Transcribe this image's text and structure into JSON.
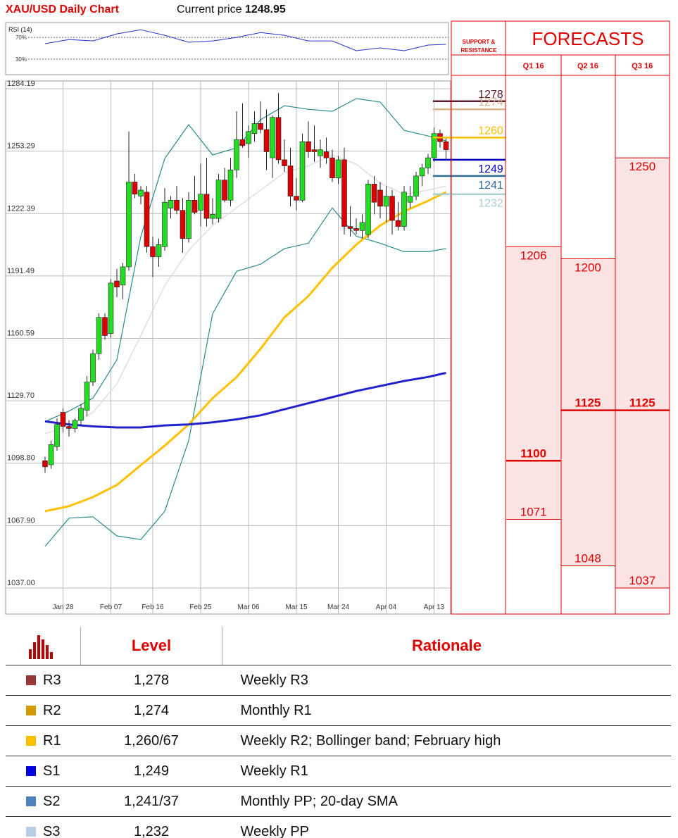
{
  "header": {
    "title": "XAU/USD Daily Chart",
    "price_label": "Current price",
    "price": 1248.95
  },
  "chart_data": [
    {
      "type": "line",
      "title": "RSI (14)",
      "x": [
        0,
        4,
        8,
        12,
        16,
        20,
        24,
        28,
        32,
        36,
        40,
        44,
        48,
        52,
        56,
        60,
        64,
        67
      ],
      "series": [
        {
          "color": "#2233cc",
          "values": [
            58.4,
            66.1,
            63.5,
            76.5,
            84.2,
            73.9,
            61,
            63.5,
            70,
            79,
            73.9,
            63.5,
            63.5,
            45.5,
            50.6,
            45.5,
            55.8,
            57.1
          ]
        }
      ],
      "ylim": [
        0,
        100
      ],
      "yticks": [
        {
          "value": 30,
          "label": "30%"
        },
        {
          "value": 70,
          "label": "70%"
        }
      ]
    },
    {
      "type": "candlestick",
      "up_color": "#22dd22",
      "down_color": "#dd0000",
      "categories": [
        null,
        null,
        null,
        "Jan 28",
        null,
        null,
        null,
        null,
        null,
        null,
        null,
        "Feb 07",
        null,
        null,
        null,
        null,
        null,
        null,
        "Feb 16",
        null,
        null,
        null,
        null,
        null,
        null,
        null,
        "Feb 25",
        null,
        null,
        null,
        null,
        null,
        null,
        null,
        "Mar 06",
        null,
        null,
        null,
        null,
        null,
        null,
        null,
        "Mar 15",
        null,
        null,
        null,
        null,
        null,
        null,
        "Mar 24",
        null,
        null,
        null,
        null,
        null,
        null,
        null,
        "Apr 04",
        null,
        null,
        null,
        null,
        null,
        null,
        null,
        "Apr 13",
        null,
        null
      ],
      "open": [
        1100,
        1098,
        1107,
        1124,
        1117,
        1116,
        1120,
        1125,
        1139,
        1153,
        1171,
        1163,
        1189,
        1187,
        1196,
        1238,
        1231,
        1233,
        1206,
        1201,
        1206,
        1225,
        1229,
        1224,
        1210,
        1229,
        1224,
        1232,
        1220,
        1220,
        1239,
        1229,
        1244,
        1259,
        1257,
        1262,
        1267,
        1264,
        1250,
        1270,
        1249,
        1246,
        1231,
        1229,
        1258,
        1254,
        1251,
        1253,
        1250,
        1240,
        1249,
        1216,
        1215,
        1214,
        1212,
        1237,
        1234,
        1226,
        1231,
        1219,
        1216,
        1228,
        1231,
        1241,
        1245,
        1250,
        1262,
        1258
      ],
      "high": [
        1102,
        1110,
        1121,
        1126,
        1120,
        1121,
        1128,
        1142,
        1155,
        1173,
        1173,
        1190,
        1195,
        1198,
        1263,
        1242,
        1236,
        1236,
        1211,
        1210,
        1235,
        1231,
        1236,
        1230,
        1233,
        1241,
        1247,
        1250,
        1230,
        1242,
        1245,
        1250,
        1273,
        1277,
        1266,
        1273,
        1278,
        1274,
        1271,
        1282,
        1259,
        1255,
        1240,
        1262,
        1268,
        1266,
        1259,
        1260,
        1254,
        1251,
        1255,
        1226,
        1220,
        1222,
        1239,
        1241,
        1238,
        1236,
        1234,
        1228,
        1236,
        1236,
        1243,
        1247,
        1252,
        1265,
        1264,
        1260
      ],
      "low": [
        1094,
        1096,
        1105,
        1114,
        1112,
        1114,
        1118,
        1122,
        1137,
        1150,
        1160,
        1161,
        1181,
        1180,
        1194,
        1230,
        1227,
        1203,
        1191,
        1196,
        1204,
        1220,
        1222,
        1203,
        1208,
        1222,
        1216,
        1216,
        1217,
        1218,
        1228,
        1226,
        1240,
        1255,
        1250,
        1258,
        1262,
        1244,
        1240,
        1247,
        1243,
        1226,
        1224,
        1228,
        1250,
        1248,
        1245,
        1247,
        1238,
        1237,
        1212,
        1211,
        1212,
        1210,
        1210,
        1222,
        1220,
        1218,
        1212,
        1214,
        1214,
        1225,
        1229,
        1236,
        1242,
        1248,
        1255,
        1249
      ],
      "close": [
        1097,
        1108,
        1118,
        1117,
        1116,
        1120,
        1126,
        1139,
        1153,
        1171,
        1162,
        1188,
        1186,
        1196,
        1238,
        1232,
        1234,
        1206,
        1201,
        1207,
        1228,
        1229,
        1224,
        1210,
        1229,
        1223,
        1232,
        1220,
        1222,
        1239,
        1229,
        1244,
        1259,
        1256,
        1263,
        1267,
        1264,
        1253,
        1270,
        1249,
        1246,
        1231,
        1229,
        1258,
        1253,
        1253,
        1254,
        1250,
        1240,
        1249,
        1216,
        1215,
        1214,
        1218,
        1237,
        1228,
        1226,
        1231,
        1219,
        1216,
        1233,
        1231,
        1241,
        1245,
        1250,
        1262,
        1258,
        1254
      ],
      "overlay_x": [
        0,
        4,
        8,
        12,
        16,
        20,
        24,
        28,
        32,
        36,
        40,
        44,
        48,
        52,
        56,
        60,
        64,
        67
      ],
      "overlays": [
        {
          "color": "#d8d8d8",
          "values": [
            1113.5,
            1117,
            1124,
            1138,
            1162,
            1186.8,
            1204.2,
            1216.5,
            1225.2,
            1234,
            1242.7,
            1246,
            1251.4,
            1246.8,
            1237.4,
            1232,
            1234,
            1236
          ]
        },
        {
          "color": "#2a8a8a",
          "values": [
            1119.4,
            1124.6,
            1131,
            1150,
            1211,
            1249.6,
            1266.4,
            1251.4,
            1254.9,
            1268.8,
            1275.8,
            1274,
            1273,
            1279.3,
            1277.6,
            1263.6,
            1260.8,
            1258.4
          ]
        },
        {
          "color": "#2a8a8a",
          "values": [
            1057.6,
            1071.6,
            1072.3,
            1062.8,
            1061,
            1075,
            1110,
            1172.8,
            1193.8,
            1197.3,
            1205,
            1207.7,
            1225.2,
            1211.2,
            1207.7,
            1203.5,
            1203.5,
            1205
          ]
        },
        {
          "color": "#ffc000",
          "values": [
            1075,
            1077.5,
            1082,
            1088,
            1097.8,
            1107.5,
            1118,
            1131,
            1141.4,
            1155.4,
            1171,
            1181.5,
            1195.5,
            1207,
            1216.5,
            1223.5,
            1228.7,
            1233
          ]
        },
        {
          "color": "#2222cc",
          "values": [
            1119.5,
            1118,
            1117,
            1116.5,
            1116.5,
            1117.5,
            1118,
            1119,
            1120.5,
            1122.5,
            1125.5,
            1128.5,
            1131.5,
            1134.5,
            1137,
            1139.5,
            1141.5,
            1143.5
          ]
        }
      ],
      "levels_title": "SUPPORT & RESISTANCE",
      "levels": [
        {
          "value": 1278,
          "color": "#5e1a30"
        },
        {
          "value": 1274,
          "color": "#d9b58c"
        },
        {
          "value": 1260,
          "color": "#ffc000"
        },
        {
          "value": 1249,
          "color": "#0000c0"
        },
        {
          "value": 1241,
          "color": "#2f6b9a"
        },
        {
          "value": 1232,
          "color": "#a9cfcf"
        }
      ],
      "ylim": [
        1037,
        1284.19
      ],
      "yticks": [
        {
          "value": 1037,
          "label": "1037.00"
        },
        {
          "value": 1067.9,
          "label": "1067.90"
        },
        {
          "value": 1098.8,
          "label": "1098.80"
        },
        {
          "value": 1129.7,
          "label": "1129.70"
        },
        1160.59,
        1191.49,
        1222.39,
        1253.29,
        1284.19
      ],
      "grid": true
    },
    {
      "type": "range",
      "title": "FORECASTS",
      "categories": [
        "Q1 16",
        "Q2 16",
        "Q3 16"
      ],
      "high": [
        1206,
        1200,
        1250
      ],
      "median": [
        1100,
        1125,
        1125
      ],
      "low": [
        1071,
        1048,
        1037
      ],
      "ylim": [
        1037,
        1284.19
      ],
      "color": "#e00000",
      "fill": "#fde4e4"
    }
  ],
  "table": {
    "header": [
      "Level",
      "Rationale"
    ],
    "rows": [
      {
        "name": "R3",
        "color": "#953735",
        "level": "1,278",
        "rationale": "Weekly R3"
      },
      {
        "name": "R2",
        "color": "#d09a00",
        "level": "1,274",
        "rationale": "Monthly R1"
      },
      {
        "name": "R1",
        "color": "#ffc000",
        "level": "1,260/67",
        "rationale": "Weekly R2; Bollinger band; February high"
      },
      {
        "name": "S1",
        "color": "#0000e0",
        "level": "1,249",
        "rationale": "Weekly R1"
      },
      {
        "name": "S2",
        "color": "#4f81bd",
        "level": "1,241/37",
        "rationale": "Monthly PP; 20-day SMA"
      },
      {
        "name": "S3",
        "color": "#b9cde5",
        "level": "1,232",
        "rationale": "Weekly PP"
      }
    ]
  }
}
